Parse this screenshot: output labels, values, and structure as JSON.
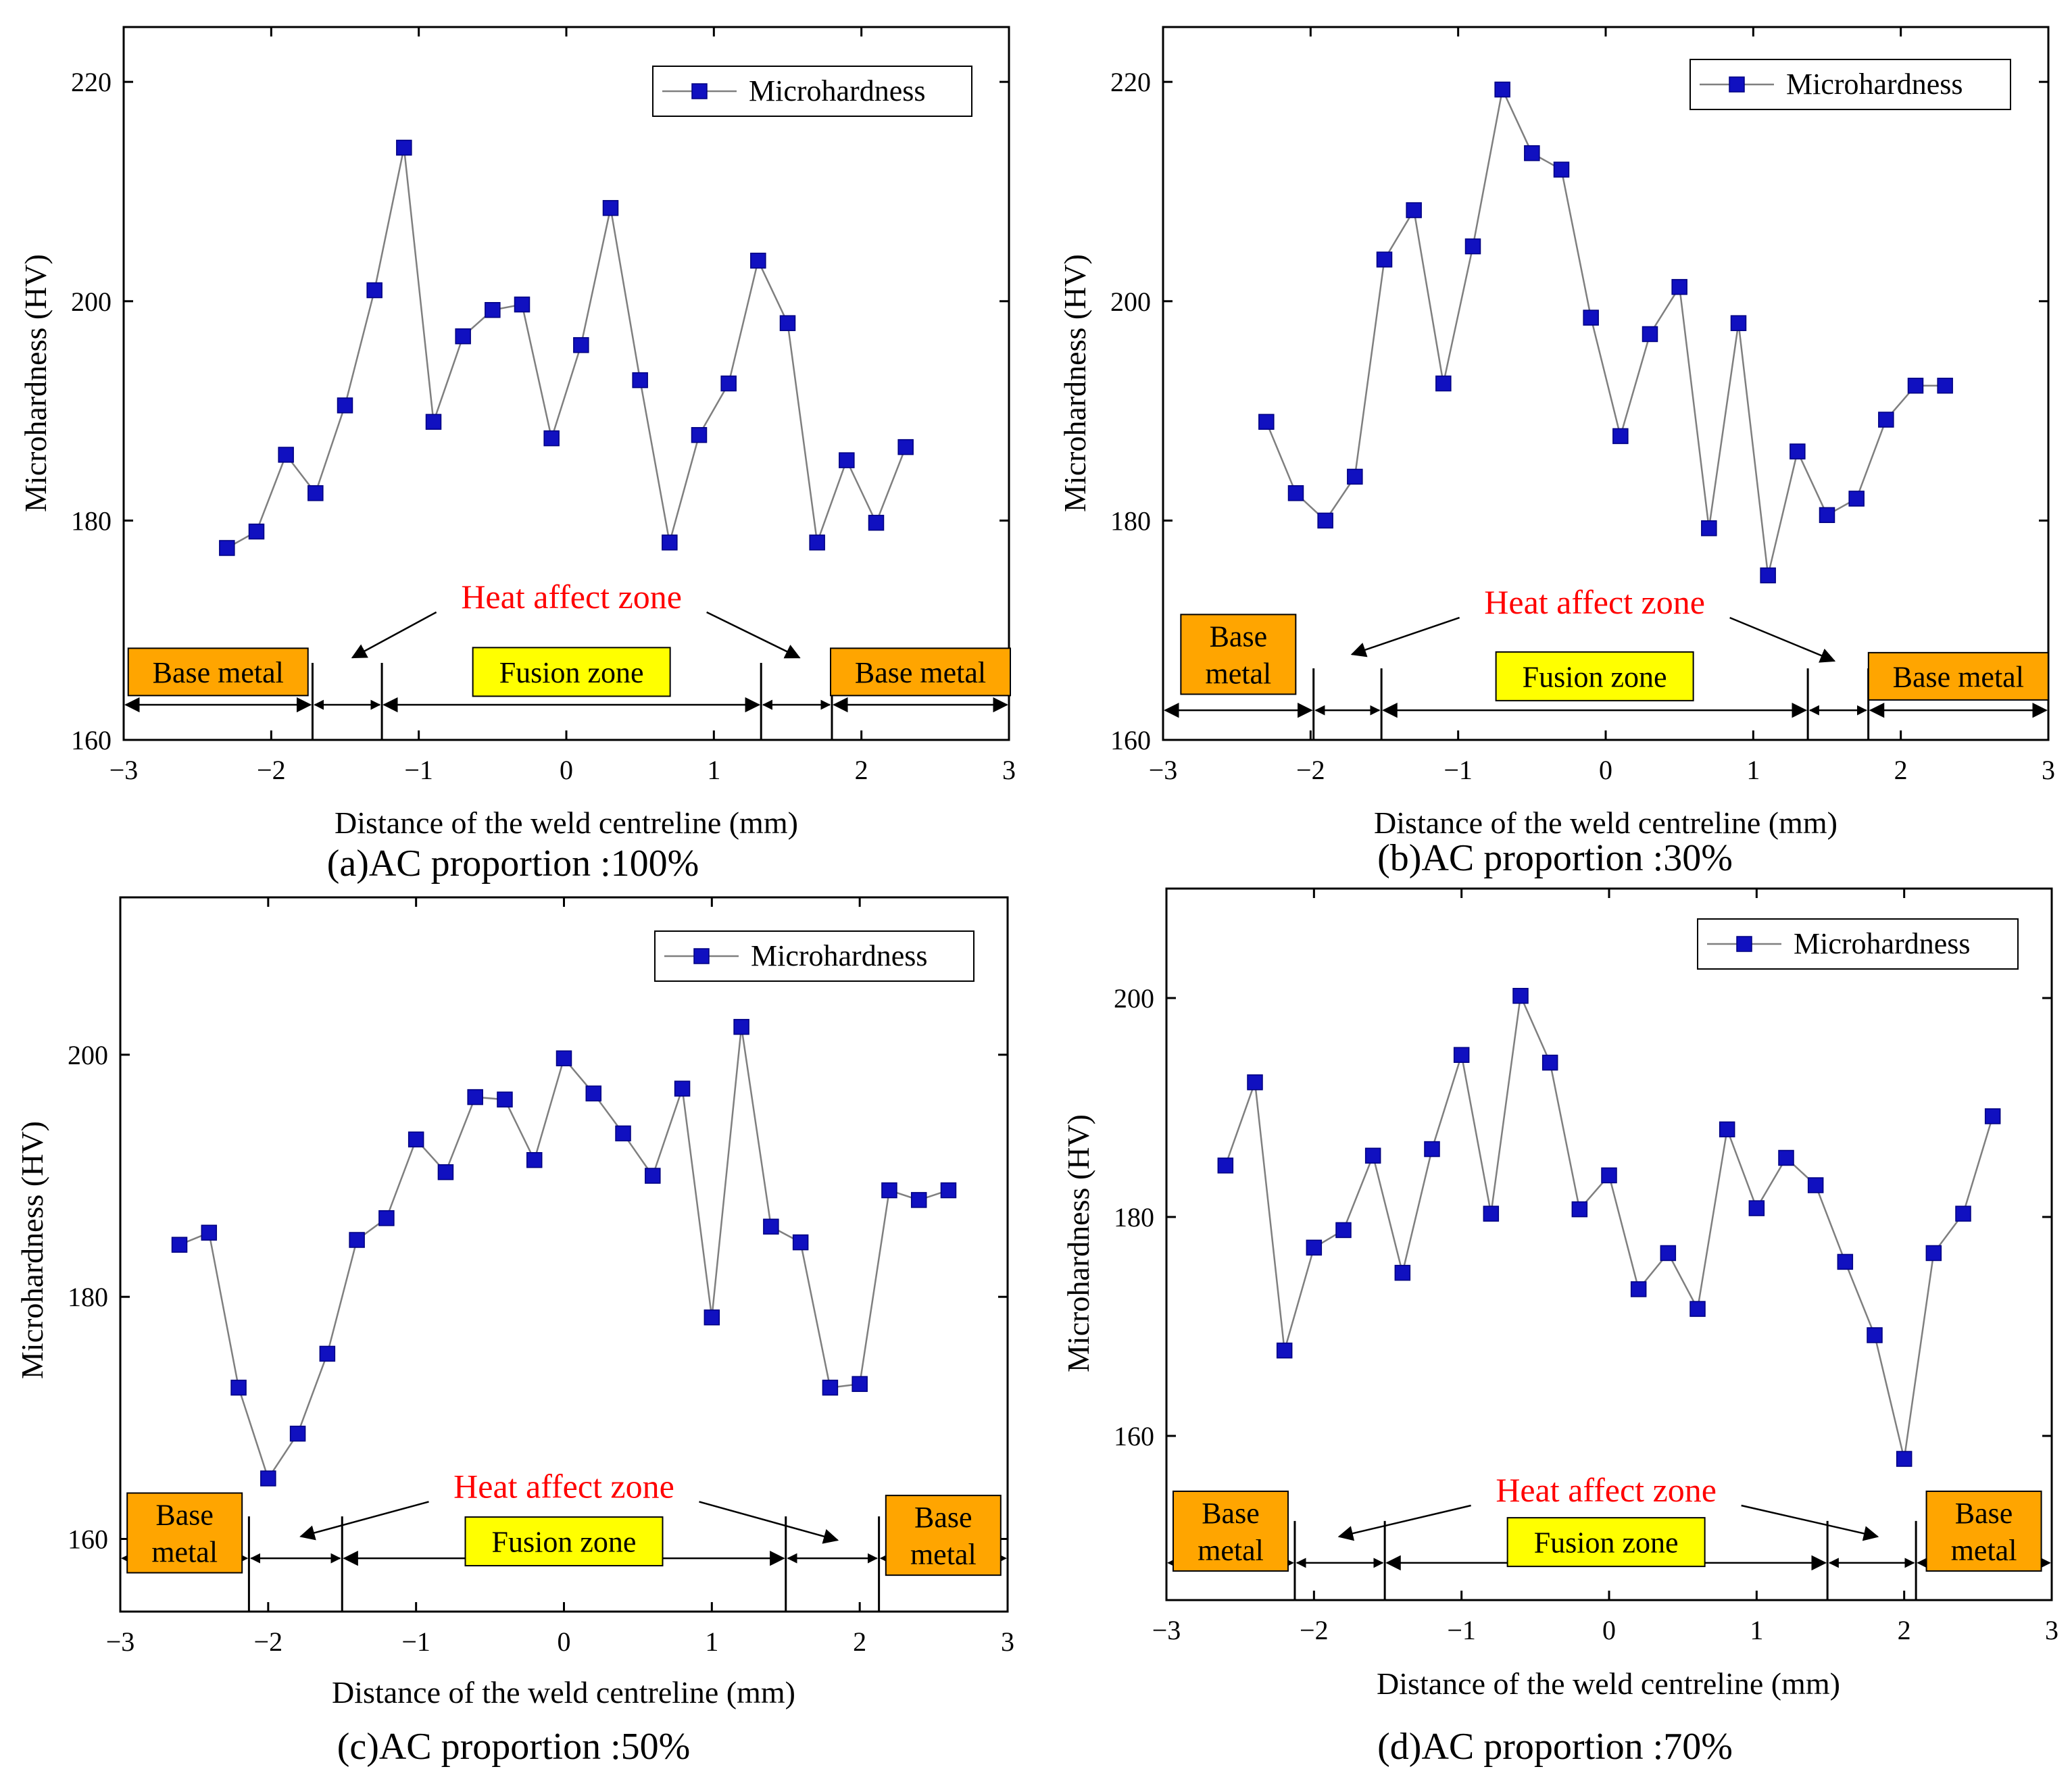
{
  "figure": {
    "colors": {
      "marker": "#1010c0",
      "marker_edge": "#000080",
      "line": "#7f7f7f",
      "axis": "#000000",
      "heat_text": "#ff0000",
      "base_box": "#ffa500",
      "fusion_box": "#ffff00"
    }
  },
  "chart_data": [
    {
      "id": "a",
      "type": "line",
      "caption": "(a)AC proportion :100%",
      "xlabel": "Distance of the weld centreline (mm)",
      "ylabel": "Microhardness (HV)",
      "xlim": [
        -3,
        3
      ],
      "ylim": [
        160,
        225
      ],
      "xticks": [
        -3,
        -2,
        -1,
        0,
        1,
        2,
        3
      ],
      "xtick_labels": [
        "−3",
        "−2",
        "−1",
        "0",
        "1",
        "2",
        "3"
      ],
      "yticks": [
        160,
        180,
        200,
        220
      ],
      "ytick_labels": [
        "160",
        "180",
        "200",
        "220"
      ],
      "legend": "Microhardness",
      "legend_loc": "top-right",
      "series": [
        {
          "name": "Microhardness",
          "x": [
            -2.3,
            -2.1,
            -1.9,
            -1.7,
            -1.5,
            -1.3,
            -1.1,
            -0.9,
            -0.7,
            -0.5,
            -0.3,
            -0.1,
            0.1,
            0.3,
            0.5,
            0.7,
            0.9,
            1.1,
            1.3,
            1.5,
            1.7,
            1.9,
            2.1,
            2.3
          ],
          "y": [
            177.5,
            179,
            186,
            182.5,
            190.5,
            201,
            214,
            189,
            196.8,
            199.2,
            199.7,
            187.5,
            196,
            208.5,
            192.8,
            178,
            187.8,
            192.5,
            203.7,
            198,
            178,
            185.5,
            179.8,
            186.7
          ]
        }
      ],
      "zones": {
        "left_base_label": "Base metal",
        "right_base_label": "Base metal",
        "fusion_label": "Fusion zone",
        "heat_label": "Heat affect zone",
        "boundaries": [
          -1.72,
          -1.25,
          1.32,
          1.8
        ],
        "arrow_y": 163.2,
        "base_box_y": 166.2,
        "fusion_box_y": 166.2,
        "heat_text_y": 173,
        "heat_arrow_left_target": [
          -1.45,
          167.5
        ],
        "heat_arrow_right_target": [
          1.58,
          167.5
        ]
      }
    },
    {
      "id": "b",
      "type": "line",
      "caption": "(b)AC proportion :30%",
      "xlabel": "Distance of the weld centreline (mm)",
      "ylabel": "Microhardness (HV)",
      "xlim": [
        -3,
        3
      ],
      "ylim": [
        160,
        225
      ],
      "xticks": [
        -3,
        -2,
        -1,
        0,
        1,
        2,
        3
      ],
      "xtick_labels": [
        "−3",
        "−2",
        "−1",
        "0",
        "1",
        "2",
        "3"
      ],
      "yticks": [
        160,
        180,
        200,
        220
      ],
      "ytick_labels": [
        "160",
        "180",
        "200",
        "220"
      ],
      "legend": "Microhardness",
      "legend_loc": "top-right",
      "series": [
        {
          "name": "Microhardness",
          "x": [
            -2.3,
            -2.1,
            -1.9,
            -1.7,
            -1.5,
            -1.3,
            -1.1,
            -0.9,
            -0.7,
            -0.5,
            -0.3,
            -0.1,
            0.1,
            0.3,
            0.5,
            0.7,
            0.9,
            1.1,
            1.3,
            1.5,
            1.7,
            1.9,
            2.1,
            2.3
          ],
          "y": [
            189,
            182.5,
            180,
            184,
            203.8,
            208.3,
            192.5,
            205,
            219.3,
            213.5,
            212,
            198.5,
            187.7,
            197,
            201.3,
            179.3,
            198,
            175,
            186.3,
            180.5,
            182,
            189.2,
            192.3,
            192.3
          ]
        }
      ],
      "zones": {
        "left_base_label": "Base\nmetal",
        "right_base_label": "Base metal",
        "fusion_label": "Fusion zone",
        "heat_label": "Heat affect zone",
        "boundaries": [
          -1.98,
          -1.52,
          1.37,
          1.78
        ],
        "arrow_y": 162.7,
        "base_box_y": 167.8,
        "right_base_box_y": 165.8,
        "fusion_box_y": 165.8,
        "heat_text_y": 172.5,
        "heat_arrow_left_target": [
          -1.72,
          167.8
        ],
        "heat_arrow_right_target": [
          1.55,
          167.2
        ]
      }
    },
    {
      "id": "c",
      "type": "line",
      "caption": "(c)AC proportion :50%",
      "xlabel": "Distance of the weld centreline (mm)",
      "ylabel": "Microhardness (HV)",
      "xlim": [
        -3,
        3
      ],
      "ylim": [
        154,
        213
      ],
      "xticks": [
        -3,
        -2,
        -1,
        0,
        1,
        2,
        3
      ],
      "xtick_labels": [
        "−3",
        "−2",
        "−1",
        "0",
        "1",
        "2",
        "3"
      ],
      "yticks": [
        160,
        180,
        200
      ],
      "ytick_labels": [
        "160",
        "180",
        "200"
      ],
      "legend": "Microhardness",
      "legend_loc": "top-right",
      "series": [
        {
          "name": "Microhardness",
          "x": [
            -2.6,
            -2.4,
            -2.2,
            -2.0,
            -1.8,
            -1.6,
            -1.4,
            -1.2,
            -1.0,
            -0.8,
            -0.6,
            -0.4,
            -0.2,
            0.0,
            0.2,
            0.4,
            0.6,
            0.8,
            1.0,
            1.2,
            1.4,
            1.6,
            1.8,
            2.0,
            2.2,
            2.4,
            2.6
          ],
          "y": [
            184.3,
            185.3,
            172.5,
            165,
            168.7,
            175.3,
            184.7,
            186.5,
            193,
            190.3,
            196.5,
            196.3,
            191.3,
            199.7,
            196.8,
            193.5,
            190,
            197.2,
            178.3,
            202.3,
            185.8,
            184.5,
            172.5,
            172.8,
            188.8,
            188,
            188.8
          ]
        }
      ],
      "zones": {
        "left_base_label": "Base\nmetal",
        "right_base_label": "Base\nmetal",
        "fusion_label": "Fusion zone",
        "heat_label": "Heat affect zone",
        "boundaries": [
          -2.13,
          -1.5,
          1.5,
          2.13
        ],
        "arrow_y": 158.4,
        "base_box_y": 160.5,
        "right_base_box_y": 160.3,
        "fusion_box_y": 159.8,
        "heat_text_y": 164.3,
        "heat_arrow_left_target": [
          -1.78,
          160.2
        ],
        "heat_arrow_right_target": [
          1.85,
          159.9
        ]
      }
    },
    {
      "id": "d",
      "type": "line",
      "caption": "(d)AC proportion :70%",
      "xlabel": "Distance of the weld centreline (mm)",
      "ylabel": "Microhardness (HV)",
      "xlim": [
        -3,
        3
      ],
      "ylim": [
        145,
        210
      ],
      "xticks": [
        -3,
        -2,
        -1,
        0,
        1,
        2,
        3
      ],
      "xtick_labels": [
        "−3",
        "−2",
        "−1",
        "0",
        "1",
        "2",
        "3"
      ],
      "yticks": [
        160,
        180,
        200
      ],
      "ytick_labels": [
        "160",
        "180",
        "200"
      ],
      "legend": "Microhardness",
      "legend_loc": "top-right",
      "series": [
        {
          "name": "Microhardness",
          "x": [
            -2.6,
            -2.4,
            -2.2,
            -2.0,
            -1.8,
            -1.6,
            -1.4,
            -1.2,
            -1.0,
            -0.8,
            -0.6,
            -0.4,
            -0.2,
            0.0,
            0.2,
            0.4,
            0.6,
            0.8,
            1.0,
            1.2,
            1.4,
            1.6,
            1.8,
            2.0,
            2.2,
            2.4,
            2.6
          ],
          "y": [
            184.7,
            192.3,
            167.8,
            177.2,
            178.8,
            185.6,
            174.9,
            186.2,
            194.8,
            180.3,
            200.2,
            194.1,
            180.7,
            183.8,
            173.4,
            176.7,
            171.6,
            188,
            180.8,
            185.4,
            182.9,
            175.9,
            169.2,
            157.9,
            176.7,
            180.3,
            189.2
          ]
        }
      ],
      "zones": {
        "left_base_label": "Base\nmetal",
        "right_base_label": "Base\nmetal",
        "fusion_label": "Fusion zone",
        "heat_label": "Heat affect zone",
        "boundaries": [
          -2.13,
          -1.52,
          1.48,
          2.08
        ],
        "arrow_y": 148.4,
        "base_box_y": 151.3,
        "right_base_box_y": 151.3,
        "fusion_box_y": 150.3,
        "heat_text_y": 155,
        "heat_arrow_left_target": [
          -1.83,
          150.8
        ],
        "heat_arrow_right_target": [
          1.82,
          150.8
        ]
      }
    }
  ]
}
